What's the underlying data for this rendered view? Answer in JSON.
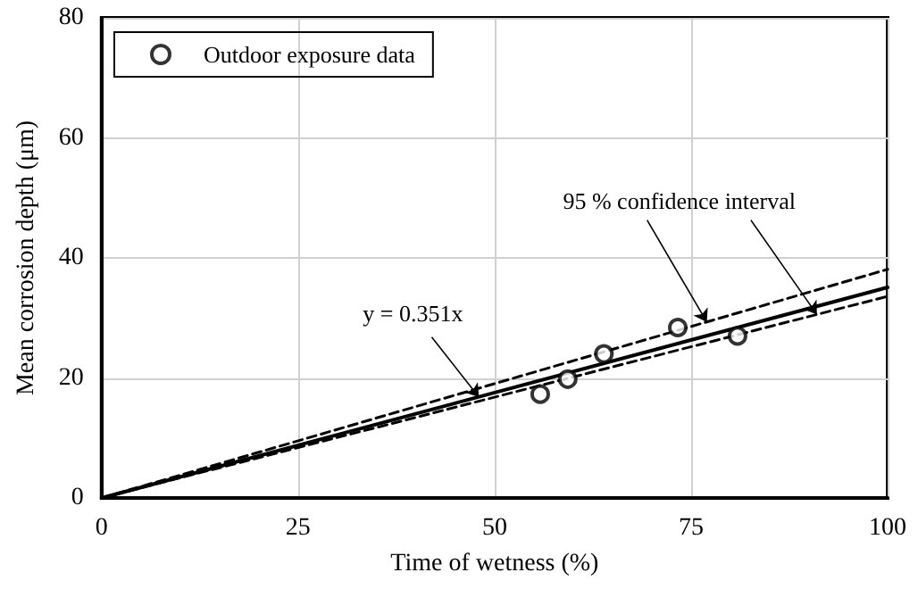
{
  "chart_data": {
    "type": "scatter",
    "xlabel": "Time of wetness (%)",
    "ylabel": "Mean corrosion depth (μm)",
    "xlim": [
      0,
      100
    ],
    "xticks": [
      0,
      25,
      50,
      75,
      100
    ],
    "ylim": [
      0,
      80
    ],
    "yticks": [
      0,
      20,
      40,
      60,
      80
    ],
    "grid": true,
    "legend": "top left",
    "marker": "circle",
    "series": [
      {
        "name": "Outdoor exposure data",
        "color": "#000000",
        "x": [
          55.8,
          59.3,
          63.9,
          73.3,
          80.9
        ],
        "values": [
          17.3,
          19.8,
          24.0,
          28.4,
          27.0
        ]
      },
      {
        "type": "line",
        "color": "#000000",
        "line_style": "solid",
        "marker": "none",
        "x": [
          0,
          100
        ],
        "values": [
          0,
          35.1
        ]
      },
      {
        "type": "line",
        "color": "#000000",
        "line_style": "dashed",
        "marker": "none",
        "x": [
          0,
          100
        ],
        "values": [
          0,
          38.1
        ]
      },
      {
        "type": "line",
        "color": "#000000",
        "line_style": "dashed",
        "marker": "none",
        "x": [
          0,
          100
        ],
        "values": [
          0,
          33.6
        ]
      }
    ],
    "annotations": [
      {
        "text": "y = 0.351x",
        "x": 48,
        "y": 16.8
      },
      {
        "text": "95 % confidence interval",
        "x": 77,
        "y": 29.3
      }
    ]
  }
}
